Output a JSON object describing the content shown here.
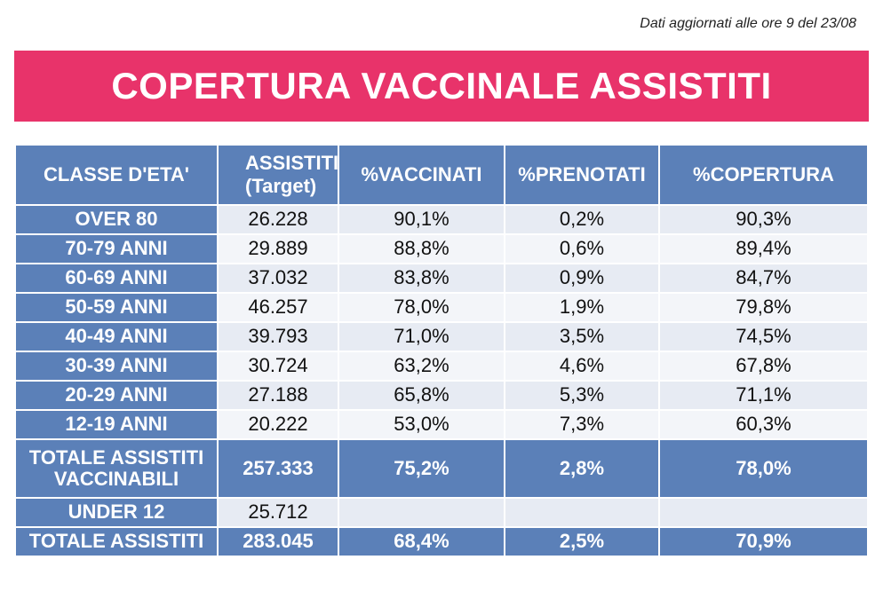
{
  "updated_note": "Dati aggiornati alle ore 9 del 23/08",
  "title": "COPERTURA VACCINALE ASSISTITI",
  "colors": {
    "banner": "#e8336a",
    "header": "#5b80b8",
    "row_band_a": "#e7ebf3",
    "row_band_b": "#f3f5f9"
  },
  "table": {
    "headers": [
      "CLASSE D'ETA'",
      "ASSISTITI (Target)",
      "%VACCINATI",
      "%PRENOTATI",
      "%COPERTURA"
    ],
    "rows": [
      {
        "classe": "OVER 80",
        "assistiti": "26.228",
        "vaccinati": "90,1%",
        "prenotati": "0,2%",
        "copertura": "90,3%"
      },
      {
        "classe": "70-79 ANNI",
        "assistiti": "29.889",
        "vaccinati": "88,8%",
        "prenotati": "0,6%",
        "copertura": "89,4%"
      },
      {
        "classe": "60-69 ANNI",
        "assistiti": "37.032",
        "vaccinati": "83,8%",
        "prenotati": "0,9%",
        "copertura": "84,7%"
      },
      {
        "classe": "50-59 ANNI",
        "assistiti": "46.257",
        "vaccinati": "78,0%",
        "prenotati": "1,9%",
        "copertura": "79,8%"
      },
      {
        "classe": "40-49 ANNI",
        "assistiti": "39.793",
        "vaccinati": "71,0%",
        "prenotati": "3,5%",
        "copertura": "74,5%"
      },
      {
        "classe": "30-39 ANNI",
        "assistiti": "30.724",
        "vaccinati": "63,2%",
        "prenotati": "4,6%",
        "copertura": "67,8%"
      },
      {
        "classe": "20-29 ANNI",
        "assistiti": "27.188",
        "vaccinati": "65,8%",
        "prenotati": "5,3%",
        "copertura": "71,1%"
      },
      {
        "classe": "12-19 ANNI",
        "assistiti": "20.222",
        "vaccinati": "53,0%",
        "prenotati": "7,3%",
        "copertura": "60,3%"
      }
    ],
    "totale_vaccinabili": {
      "classe": "TOTALE ASSISTITI VACCINABILI",
      "assistiti": "257.333",
      "vaccinati": "75,2%",
      "prenotati": "2,8%",
      "copertura": "78,0%"
    },
    "under12": {
      "classe": "UNDER 12",
      "assistiti": "25.712",
      "vaccinati": "",
      "prenotati": "",
      "copertura": ""
    },
    "totale": {
      "classe": "TOTALE ASSISTITI",
      "assistiti": "283.045",
      "vaccinati": "68,4%",
      "prenotati": "2,5%",
      "copertura": "70,9%"
    }
  }
}
